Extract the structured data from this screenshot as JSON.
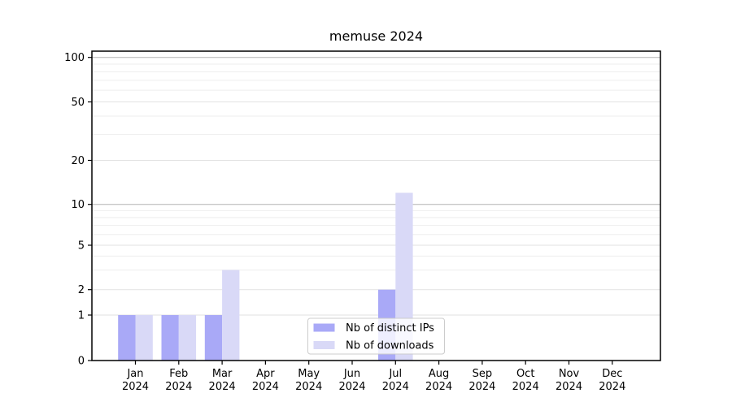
{
  "title": "memuse 2024",
  "chart_data": {
    "type": "bar",
    "title": "memuse 2024",
    "categories": [
      "Jan",
      "Feb",
      "Mar",
      "Apr",
      "May",
      "Jun",
      "Jul",
      "Aug",
      "Sep",
      "Oct",
      "Nov",
      "Dec"
    ],
    "category_year": "2024",
    "series": [
      {
        "name": "Nb of distinct IPs",
        "color": "#a9a9f7",
        "values": [
          1,
          1,
          1,
          0,
          0,
          0,
          2,
          0,
          0,
          0,
          0,
          0
        ]
      },
      {
        "name": "Nb of downloads",
        "color": "#d9d9f7",
        "values": [
          1,
          1,
          3,
          0,
          0,
          0,
          12,
          0,
          0,
          0,
          0,
          0
        ]
      }
    ],
    "xlabel": "",
    "ylabel": "",
    "yscale": "symlog",
    "ylim": [
      0,
      112
    ],
    "yticks": [
      0,
      1,
      2,
      5,
      10,
      20,
      50,
      100
    ],
    "ytick_labels": [
      "0",
      "1",
      "2",
      "5",
      "10",
      "20",
      "50",
      "100"
    ],
    "minor_yticks": [
      3,
      4,
      6,
      7,
      8,
      9,
      30,
      40,
      60,
      70,
      80,
      90
    ],
    "emphasized_gridlines": [
      10,
      100
    ],
    "grid": true,
    "legend_position": "lower-center",
    "legend_entries": [
      "Nb of distinct IPs",
      "Nb of downloads"
    ]
  },
  "colors": {
    "background": "#ffffff",
    "spine": "#000000",
    "text": "#000000",
    "grid_major_emphasized": "#b4b4b4",
    "grid_labeled": "#e2e2e2",
    "grid_minor": "#eeeeee",
    "legend_border": "#cccccc",
    "legend_background_alpha": "rgba(255,255,255,0.8)"
  }
}
